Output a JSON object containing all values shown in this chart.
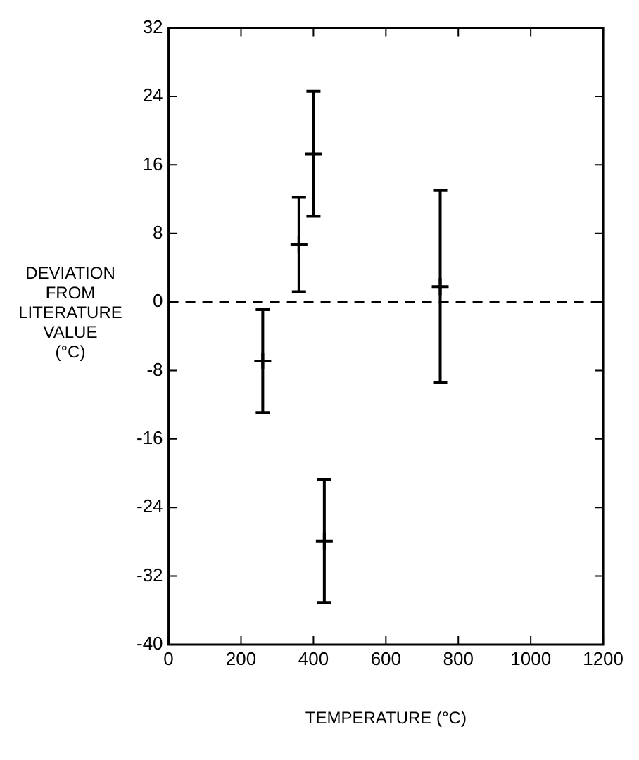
{
  "chart_data": {
    "type": "scatter",
    "xlabel": "TEMPERATURE (°C)",
    "ylabel": "DEVIATION FROM LITERATURE VALUE (°C)",
    "x": [
      260,
      360,
      400,
      430,
      750
    ],
    "values": [
      -6.9,
      6.7,
      17.3,
      -27.9,
      1.8
    ],
    "errors": [
      6,
      5.5,
      7.3,
      7.2,
      11.2
    ],
    "color": "#000000",
    "marker": "cross",
    "xlim": [
      0,
      1200
    ],
    "xticks": [
      0,
      200,
      400,
      600,
      800,
      1000,
      1200
    ],
    "ylim": [
      -40,
      32
    ],
    "yticks": [
      -40,
      -32,
      -24,
      -16,
      -8,
      0,
      8,
      16,
      24,
      32
    ],
    "ref_lines": [
      {
        "axis": "y",
        "value": 0,
        "line_style": "dashed",
        "color": "#000000"
      }
    ],
    "grid": false,
    "legend": false
  }
}
